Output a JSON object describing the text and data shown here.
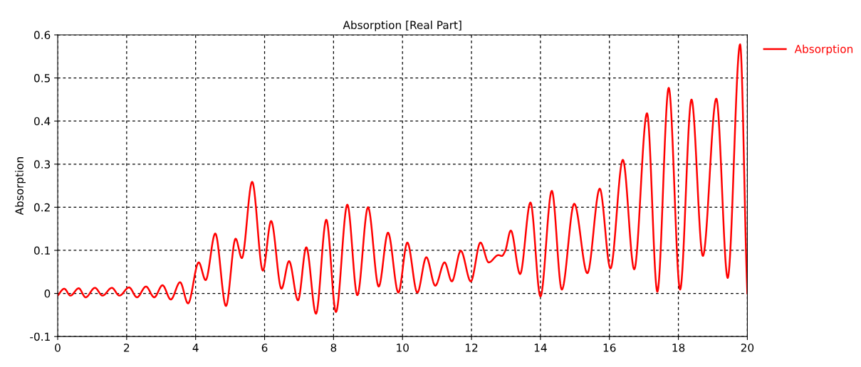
{
  "chart_data": {
    "type": "line",
    "title": "Absorption [Real Part]",
    "ylabel": "Absorption",
    "x": [
      0,
      0.19,
      0.37,
      0.61,
      0.81,
      1.08,
      1.3,
      1.57,
      1.79,
      2.07,
      2.3,
      2.56,
      2.8,
      3.04,
      3.28,
      3.55,
      3.78,
      4.09,
      4.29,
      4.57,
      4.88,
      5.16,
      5.34,
      5.64,
      5.95,
      6.19,
      6.49,
      6.71,
      6.97,
      7.21,
      7.49,
      7.79,
      8.07,
      8.4,
      8.69,
      9.0,
      9.31,
      9.58,
      9.88,
      10.14,
      10.43,
      10.69,
      10.95,
      11.22,
      11.43,
      11.69,
      11.98,
      12.26,
      12.5,
      12.78,
      12.88,
      12.98,
      13.14,
      13.41,
      13.71,
      14.0,
      14.33,
      14.62,
      14.98,
      15.36,
      15.72,
      16.03,
      16.39,
      16.72,
      17.09,
      17.39,
      17.72,
      18.05,
      18.38,
      18.71,
      19.1,
      19.43,
      19.79,
      19.98,
      20
    ],
    "series": [
      {
        "name": "Absorption",
        "color": "#ff0000",
        "values": [
          -0.005,
          0.011,
          -0.005,
          0.012,
          -0.009,
          0.013,
          -0.005,
          0.013,
          -0.005,
          0.014,
          -0.009,
          0.016,
          -0.009,
          0.019,
          -0.014,
          0.026,
          -0.023,
          0.072,
          0.031,
          0.139,
          -0.029,
          0.127,
          0.082,
          0.259,
          0.053,
          0.168,
          0.011,
          0.075,
          -0.016,
          0.107,
          -0.047,
          0.171,
          -0.043,
          0.206,
          -0.004,
          0.2,
          0.016,
          0.141,
          0.002,
          0.118,
          0.002,
          0.084,
          0.018,
          0.072,
          0.028,
          0.099,
          0.028,
          0.118,
          0.072,
          0.089,
          0.087,
          0.099,
          0.146,
          0.045,
          0.211,
          -0.007,
          0.238,
          0.009,
          0.208,
          0.047,
          0.243,
          0.058,
          0.31,
          0.056,
          0.418,
          0.004,
          0.477,
          0.009,
          0.45,
          0.087,
          0.452,
          0.036,
          0.578,
          0.045,
          0.0
        ]
      }
    ],
    "xlim": [
      0,
      20
    ],
    "xticks": [
      0,
      2,
      4,
      6,
      8,
      10,
      12,
      14,
      16,
      18,
      20
    ],
    "ylim": [
      -0.1,
      0.6
    ],
    "yticks": [
      -0.1,
      0,
      0.1,
      0.2,
      0.3,
      0.4,
      0.5,
      0.6
    ],
    "grid": true,
    "legend": "right",
    "marker": "none",
    "line_style": "solid"
  }
}
